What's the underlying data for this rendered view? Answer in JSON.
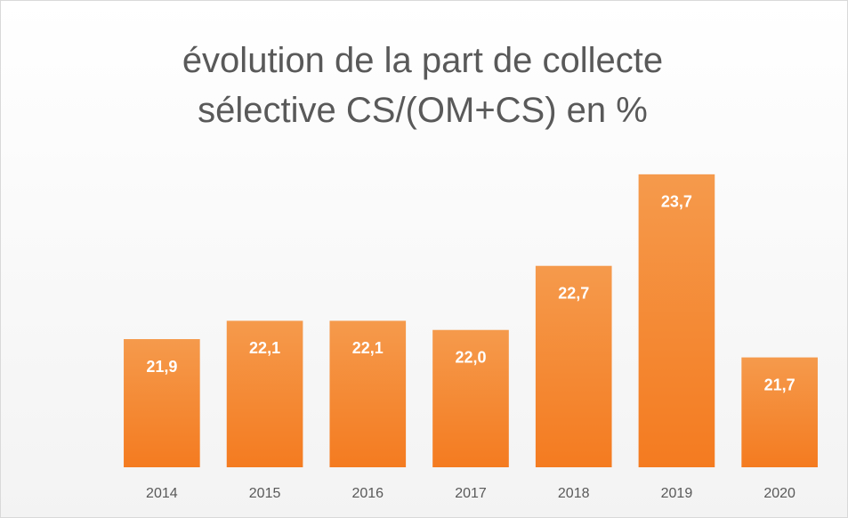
{
  "chart_data": {
    "type": "bar",
    "title": "évolution de la part de collecte sélective CS/(OM+CS) en %",
    "categories": [
      "2014",
      "2015",
      "2016",
      "2017",
      "2018",
      "2019",
      "2020"
    ],
    "values": [
      21.9,
      22.1,
      22.1,
      22.0,
      22.7,
      23.7,
      21.7
    ],
    "value_labels": [
      "21,9",
      "22,1",
      "22,1",
      "22,0",
      "22,7",
      "23,7",
      "21,7"
    ],
    "color": "#f58a34",
    "ylim": [
      20.5,
      24
    ]
  }
}
